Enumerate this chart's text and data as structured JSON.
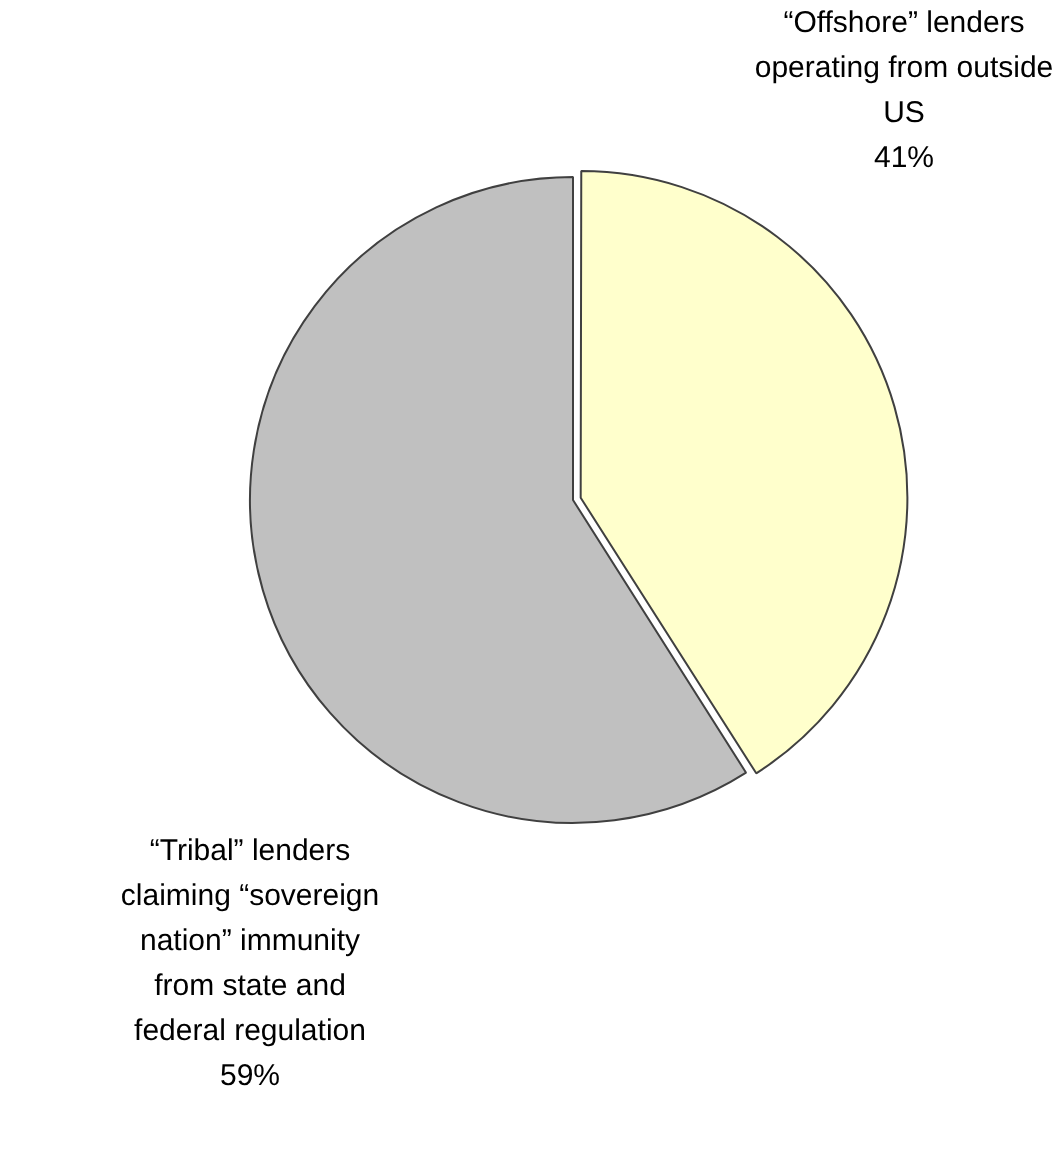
{
  "chart_data": {
    "type": "pie",
    "categories": [
      "“Offshore” lenders operating from outside US",
      "“Tribal” lenders claiming “sovereign nation” immunity from state and federal regulation"
    ],
    "values": [
      41,
      59
    ],
    "colors": [
      "#ffffcc",
      "#c0c0c0"
    ],
    "value_labels": [
      "41%",
      "59%"
    ],
    "legend": false
  }
}
